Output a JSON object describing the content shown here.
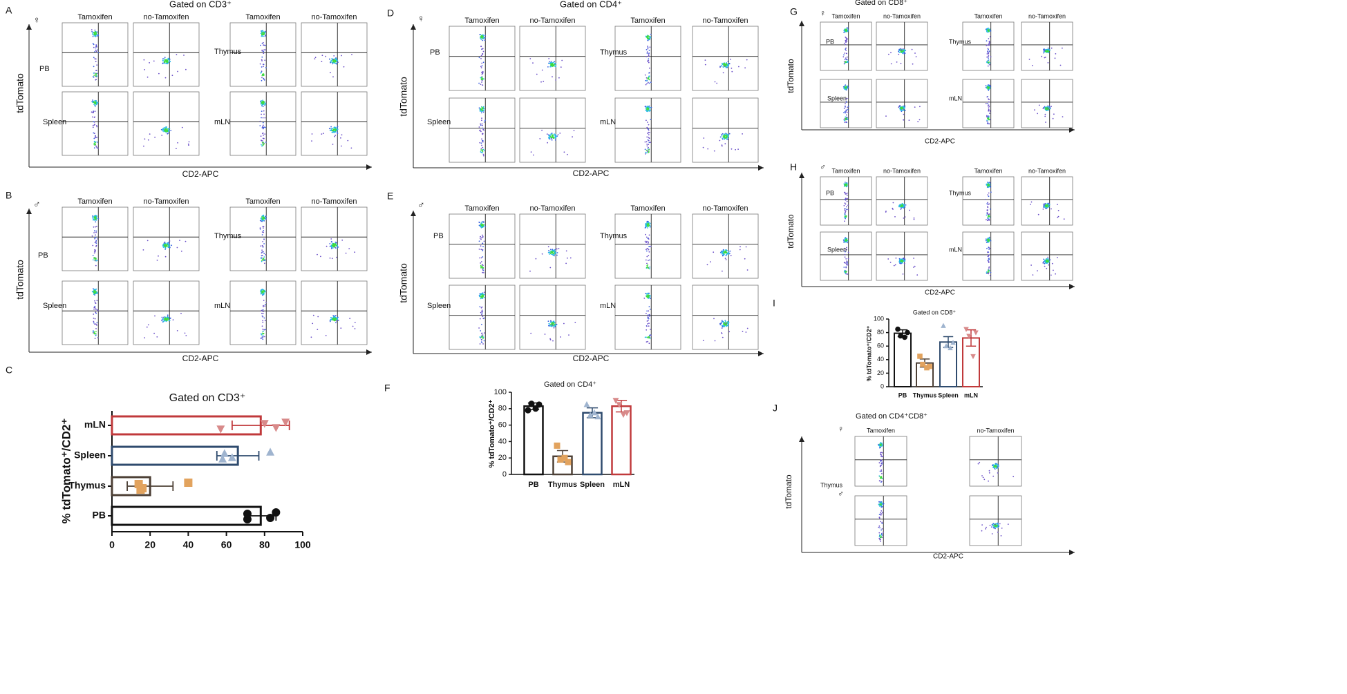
{
  "flow_sections": [
    {
      "label": "A",
      "title": "Gated on CD3⁺",
      "sex": "♀",
      "columns": [
        "Tamoxifen",
        "no-Tamoxifen",
        "Tamoxifen",
        "no-Tamoxifen"
      ],
      "row_labels": [
        [
          "PB",
          "Thymus"
        ],
        [
          "Spleen",
          "mLN"
        ]
      ],
      "ylabel": "tdTomato",
      "xlabel": "CD2-APC"
    },
    {
      "label": "B",
      "sex": "♂",
      "columns": [
        "Tamoxifen",
        "no-Tamoxifen",
        "Tamoxifen",
        "no-Tamoxifen"
      ],
      "row_labels": [
        [
          "PB",
          "Thymus"
        ],
        [
          "Spleen",
          "mLN"
        ]
      ],
      "ylabel": "tdTomato",
      "xlabel": "CD2-APC"
    },
    {
      "label": "D",
      "title": "Gated on CD4⁺",
      "sex": "♀",
      "columns": [
        "Tamoxifen",
        "no-Tamoxifen",
        "Tamoxifen",
        "no-Tamoxifen"
      ],
      "row_labels": [
        [
          "PB",
          "Thymus"
        ],
        [
          "Spleen",
          "mLN"
        ]
      ],
      "ylabel": "tdTomato",
      "xlabel": "CD2-APC"
    },
    {
      "label": "E",
      "sex": "♂",
      "columns": [
        "Tamoxifen",
        "no-Tamoxifen",
        "Tamoxifen",
        "no-Tamoxifen"
      ],
      "row_labels": [
        [
          "PB",
          "Thymus"
        ],
        [
          "Spleen",
          "mLN"
        ]
      ],
      "ylabel": "tdTomato",
      "xlabel": "CD2-APC"
    },
    {
      "label": "G",
      "title": "Gated on CD8⁺",
      "sex": "♀",
      "columns": [
        "Tamoxifen",
        "no-Tamoxifen",
        "Tamoxifen",
        "no-Tamoxifen"
      ],
      "row_labels": [
        [
          "PB",
          "Thymus"
        ],
        [
          "Spleen",
          "mLN"
        ]
      ],
      "ylabel": "tdTomato",
      "xlabel": "CD2-APC"
    },
    {
      "label": "H",
      "sex": "♂",
      "columns": [
        "Tamoxifen",
        "no-Tamoxifen",
        "Tamoxifen",
        "no-Tamoxifen"
      ],
      "row_labels": [
        [
          "PB",
          "Thymus"
        ],
        [
          "Spleen",
          "mLN"
        ]
      ],
      "ylabel": "tdTomato",
      "xlabel": "CD2-APC"
    },
    {
      "label": "J",
      "title": "Gated on CD4⁺CD8⁺",
      "columns": [
        "Tamoxifen",
        "no-Tamoxifen"
      ],
      "row_sexes": [
        "♀",
        "♂"
      ],
      "row_labels": [
        [
          "Thymus"
        ]
      ],
      "ylabel": "tdTomato",
      "xlabel": "CD2-APC"
    }
  ],
  "panel_labels": [
    "C",
    "F",
    "I"
  ],
  "chart_data": [
    {
      "type": "bar",
      "orientation": "horizontal",
      "title": "Gated on CD3⁺",
      "ylabel": "% tdTomato⁺/CD2⁺",
      "categories": [
        "PB",
        "Thymus",
        "Spleen",
        "mLN"
      ],
      "values": [
        78,
        20,
        66,
        78
      ],
      "errors": [
        8,
        12,
        11,
        15
      ],
      "points": [
        [
          71,
          71,
          83,
          86
        ],
        [
          15,
          14,
          16,
          40
        ],
        [
          58,
          59,
          63,
          83
        ],
        [
          57,
          80,
          86,
          91
        ]
      ],
      "colors": [
        "#111111",
        "#4d4036",
        "#2f4b6e",
        "#c0393b"
      ],
      "point_colors": [
        "#111111",
        "#e2a35e",
        "#9fb4cf",
        "#d88a8a"
      ],
      "markers": [
        "circle",
        "square",
        "triangle",
        "triangle-down"
      ],
      "xlim": [
        0,
        100
      ],
      "xticks": [
        0,
        20,
        40,
        60,
        80,
        100
      ]
    },
    {
      "type": "bar",
      "orientation": "vertical",
      "title": "Gated on CD4⁺",
      "ylabel": "% tdTomato⁺/CD2⁺",
      "categories": [
        "PB",
        "Thymus",
        "Spleen",
        "mLN"
      ],
      "values": [
        83,
        22,
        75,
        83
      ],
      "errors": [
        4,
        7,
        6,
        7
      ],
      "points": [
        [
          78,
          85,
          86,
          80
        ],
        [
          35,
          15,
          18,
          20
        ],
        [
          85,
          70,
          72,
          75
        ],
        [
          90,
          75,
          85,
          73
        ]
      ],
      "colors": [
        "#111111",
        "#4d4036",
        "#2f4b6e",
        "#c0393b"
      ],
      "point_colors": [
        "#111111",
        "#e2a35e",
        "#9fb4cf",
        "#d88a8a"
      ],
      "markers": [
        "circle",
        "square",
        "triangle",
        "triangle-down"
      ],
      "ylim": [
        0,
        100
      ],
      "yticks": [
        0,
        20,
        40,
        60,
        80,
        100
      ]
    },
    {
      "type": "bar",
      "orientation": "vertical",
      "title": "Gated on CD8⁺",
      "ylabel": "% tdTomato⁺/CD2⁺",
      "categories": [
        "PB",
        "Thymus",
        "Spleen",
        "mLN"
      ],
      "values": [
        79,
        35,
        66,
        72
      ],
      "errors": [
        5,
        6,
        8,
        12
      ],
      "points": [
        [
          85,
          80,
          75,
          73
        ],
        [
          45,
          30,
          33,
          28
        ],
        [
          90,
          65,
          60,
          57
        ],
        [
          85,
          80,
          75,
          45
        ]
      ],
      "colors": [
        "#111111",
        "#4d4036",
        "#2f4b6e",
        "#c0393b"
      ],
      "point_colors": [
        "#111111",
        "#e2a35e",
        "#9fb4cf",
        "#d88a8a"
      ],
      "markers": [
        "circle",
        "square",
        "triangle",
        "triangle-down"
      ],
      "ylim": [
        0,
        100
      ],
      "yticks": [
        0,
        20,
        40,
        60,
        80,
        100
      ]
    }
  ]
}
